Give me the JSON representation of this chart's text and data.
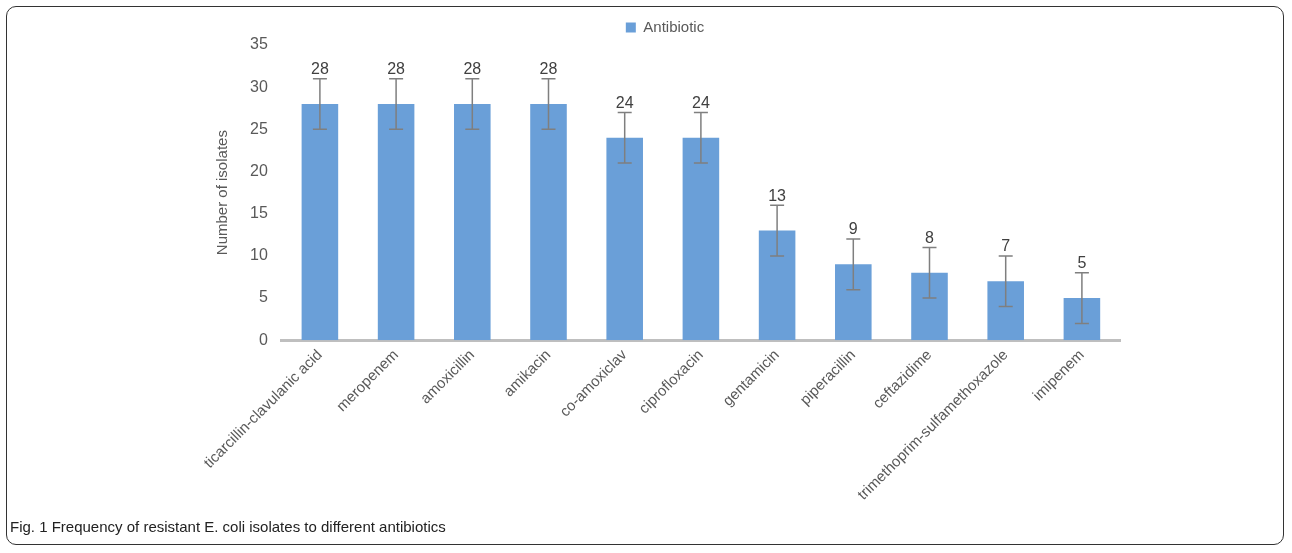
{
  "chart_data": {
    "type": "bar",
    "categories": [
      "ticarcillin-clavulanic acid",
      "meropenem",
      "amoxicillin",
      "amikacin",
      "co-amoxiclav",
      "ciprofloxacin",
      "gentamicin",
      "piperacillin",
      "ceftazidime",
      "trimethoprim-sulfamethoxazole",
      "imipenem"
    ],
    "series": [
      {
        "name": "Antibiotic",
        "color": "#6a9fd8",
        "values": [
          28,
          28,
          28,
          28,
          24,
          24,
          13,
          9,
          8,
          7,
          5
        ],
        "errors": [
          3,
          3,
          3,
          3,
          3,
          3,
          3,
          3,
          3,
          3,
          3
        ]
      }
    ],
    "ylabel": "Number of isolates",
    "ylim": [
      0,
      35
    ],
    "yticks": [
      0,
      5,
      10,
      15,
      20,
      25,
      30,
      35
    ],
    "grid": false,
    "legend": "top",
    "data_labels": true,
    "annotations": [
      "Fig. 1 Frequency of resistant E. coli isolates to different antibiotics"
    ]
  }
}
